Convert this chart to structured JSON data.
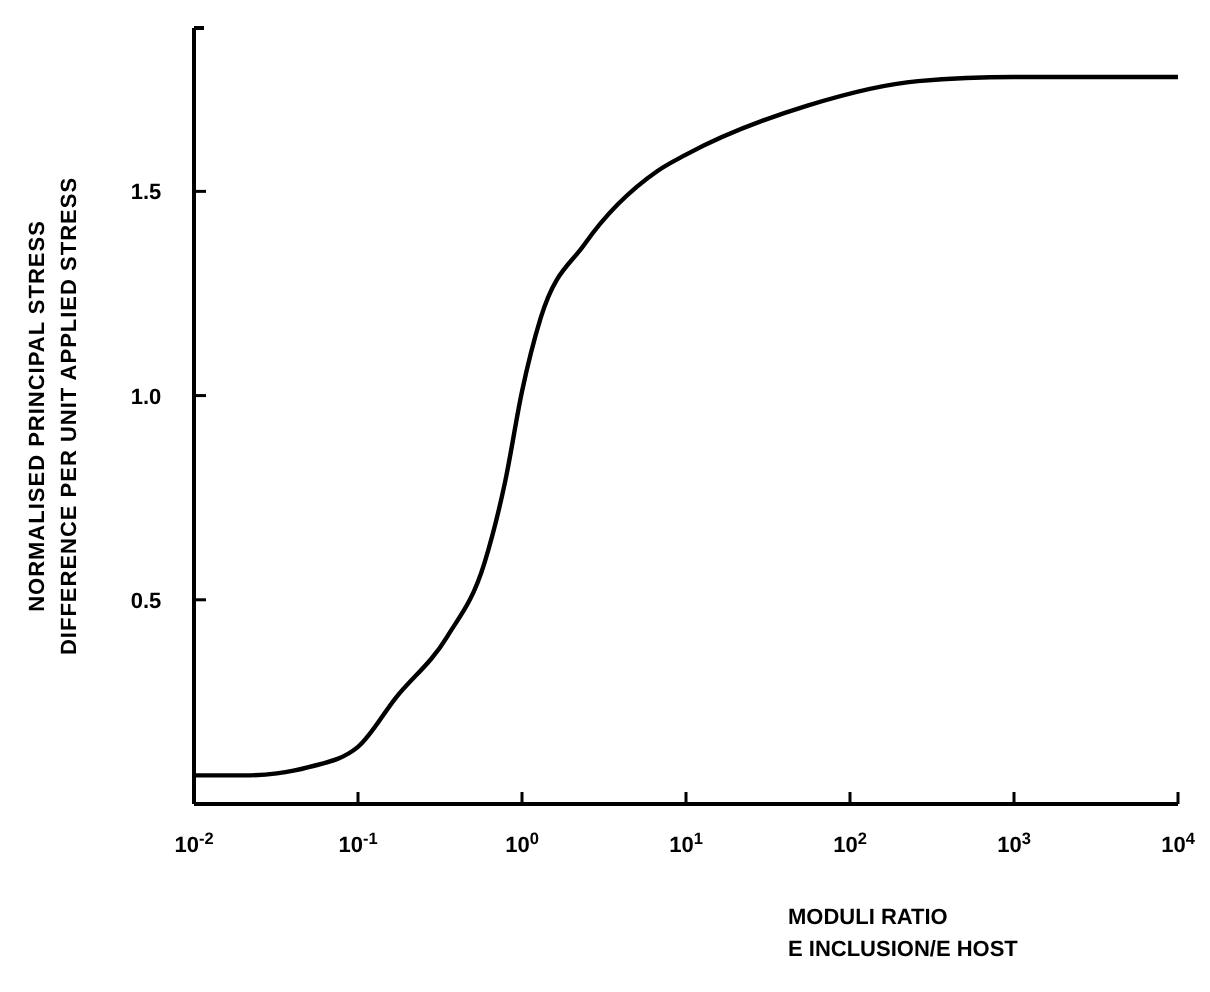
{
  "chart_data": {
    "type": "line",
    "xlabel": "MODULI RATIO\nE INCLUSION/E HOST",
    "ylabel": "NORMALISED PRINCIPAL STRESS\nDIFFERENCE PER UNIT APPLIED STRESS",
    "log": "x",
    "x": [
      0.01,
      0.02,
      0.032,
      0.05,
      0.1,
      0.17,
      0.35,
      0.59,
      0.79,
      1.0,
      1.3,
      2.4,
      6.7,
      10,
      55,
      260,
      1000,
      10000
    ],
    "series": [
      {
        "color": "#000000",
        "values": [
          0.07,
          0.07,
          0.075,
          0.09,
          0.14,
          0.26,
          0.41,
          0.59,
          0.79,
          1.01,
          1.19,
          1.37,
          1.55,
          1.59,
          1.71,
          1.77,
          1.78,
          1.78
        ]
      }
    ],
    "xlim": [
      0.01,
      10000
    ],
    "ylim": [
      0,
      1.9
    ],
    "xticks": [
      {
        "value": 0.01,
        "label": "10$^{-2}$"
      },
      {
        "value": 0.1,
        "label": "10$^{-1}$"
      },
      {
        "value": 1,
        "label": "10$^{0}$"
      },
      {
        "value": 10,
        "label": "10$^{1}$"
      },
      {
        "value": 100,
        "label": "10$^{2}$"
      },
      {
        "value": 1000,
        "label": "10$^{3}$"
      },
      {
        "value": 10000,
        "label": "10$^{4}$"
      }
    ],
    "yticks": [
      0.5,
      {
        "value": 1,
        "label": "1.0"
      },
      1.5
    ],
    "grid": false,
    "marker": "none",
    "line_style": "solid"
  }
}
